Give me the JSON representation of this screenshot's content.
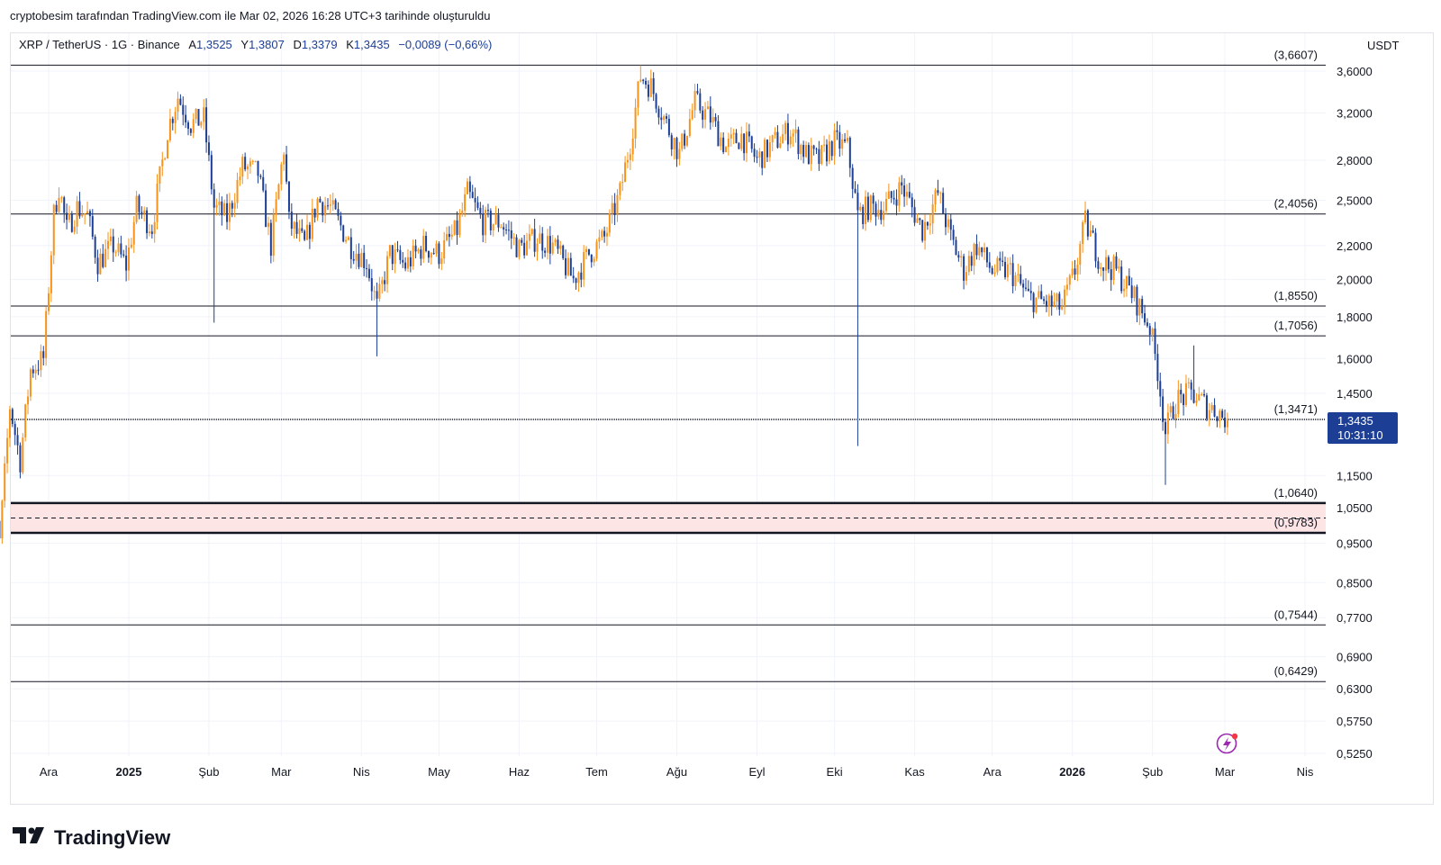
{
  "header": {
    "byline": "cryptobesim tarafından TradingView.com ile Mar 02, 2026 16:28 UTC+3 tarihinde oluşturuldu"
  },
  "legend": {
    "symbol": "XRP / TetherUS · 1G · Binance",
    "open_label": "A",
    "open": "1,3525",
    "high_label": "Y",
    "high": "1,3807",
    "low_label": "D",
    "low": "1,3379",
    "close_label": "K",
    "close": "1,3435",
    "change": "−0,0089 (−0,66%)"
  },
  "price_scale": {
    "currency": "USDT"
  },
  "price_tag": {
    "price": "1,3435",
    "countdown": "10:31:10"
  },
  "brand": {
    "name": "TradingView"
  },
  "colors": {
    "up": "#f7931a",
    "down": "#1c3f95",
    "tag_bg": "#1c3f95",
    "zone": "#fde5e5"
  },
  "chart_data": {
    "type": "candlestick",
    "y_scale": "log",
    "ylim": [
      0.52,
      3.75
    ],
    "y_ticks": [
      "3,6000",
      "3,2000",
      "2,8000",
      "2,5000",
      "2,2000",
      "2,0000",
      "1,8000",
      "1,6000",
      "1,4500",
      "1,1500",
      "1,0500",
      "0,9500",
      "0,8500",
      "0,7700",
      "0,6900",
      "0,6300",
      "0,5750",
      "0,5250"
    ],
    "y_tick_values": [
      3.6,
      3.2,
      2.8,
      2.5,
      2.2,
      2.0,
      1.8,
      1.6,
      1.45,
      1.15,
      1.05,
      0.95,
      0.85,
      0.77,
      0.69,
      0.63,
      0.575,
      0.525
    ],
    "x_ticks": [
      {
        "label": "Ara",
        "date": "2024-12-01",
        "bold": false
      },
      {
        "label": "2025",
        "date": "2025-01-01",
        "bold": true
      },
      {
        "label": "Şub",
        "date": "2025-02-01",
        "bold": false
      },
      {
        "label": "Mar",
        "date": "2025-03-01",
        "bold": false
      },
      {
        "label": "Nis",
        "date": "2025-04-01",
        "bold": false
      },
      {
        "label": "May",
        "date": "2025-05-01",
        "bold": false
      },
      {
        "label": "Haz",
        "date": "2025-06-01",
        "bold": false
      },
      {
        "label": "Tem",
        "date": "2025-07-01",
        "bold": false
      },
      {
        "label": "Ağu",
        "date": "2025-08-01",
        "bold": false
      },
      {
        "label": "Eyl",
        "date": "2025-09-01",
        "bold": false
      },
      {
        "label": "Eki",
        "date": "2025-10-01",
        "bold": false
      },
      {
        "label": "Kas",
        "date": "2025-11-01",
        "bold": false
      },
      {
        "label": "Ara",
        "date": "2025-12-01",
        "bold": false
      },
      {
        "label": "2026",
        "date": "2026-01-01",
        "bold": true
      },
      {
        "label": "Şub",
        "date": "2026-02-01",
        "bold": false
      },
      {
        "label": "Mar",
        "date": "2026-03-01",
        "bold": false
      },
      {
        "label": "Nis",
        "date": "2026-04-01",
        "bold": false
      }
    ],
    "levels": [
      {
        "label": "(3,6607)",
        "value": 3.6607
      },
      {
        "label": "(2,4056)",
        "value": 2.4056
      },
      {
        "label": "(1,8550)",
        "value": 1.855
      },
      {
        "label": "(1,7056)",
        "value": 1.7056
      },
      {
        "label": "(1,3471)",
        "value": 1.3471
      },
      {
        "label": "(1,0640)",
        "value": 1.064
      },
      {
        "label": "(0,9783)",
        "value": 0.9783
      },
      {
        "label": "(0,7544)",
        "value": 0.7544
      },
      {
        "label": "(0,6429)",
        "value": 0.6429
      }
    ],
    "support_zone": [
      0.98,
      1.064
    ],
    "support_mid": 1.02,
    "last_price": 1.3435,
    "anchors": [
      [
        "2024-11-06",
        0.52
      ],
      [
        "2024-11-08",
        1.15
      ],
      [
        "2024-11-12",
        0.95
      ],
      [
        "2024-11-16",
        1.4
      ],
      [
        "2024-11-20",
        1.2
      ],
      [
        "2024-11-24",
        1.55
      ],
      [
        "2024-11-29",
        1.6
      ],
      [
        "2024-12-03",
        2.4
      ],
      [
        "2024-12-05",
        2.6
      ],
      [
        "2024-12-08",
        2.3
      ],
      [
        "2024-12-12",
        2.45
      ],
      [
        "2024-12-16",
        2.4
      ],
      [
        "2024-12-20",
        2.1
      ],
      [
        "2024-12-26",
        2.2
      ],
      [
        "2024-12-31",
        2.08
      ],
      [
        "2025-01-04",
        2.45
      ],
      [
        "2025-01-10",
        2.32
      ],
      [
        "2025-01-16",
        3.05
      ],
      [
        "2025-01-20",
        3.35
      ],
      [
        "2025-01-25",
        3.1
      ],
      [
        "2025-01-30",
        3.15
      ],
      [
        "2025-02-03",
        2.45
      ],
      [
        "2025-02-08",
        2.38
      ],
      [
        "2025-02-14",
        2.75
      ],
      [
        "2025-02-20",
        2.7
      ],
      [
        "2025-02-25",
        2.2
      ],
      [
        "2025-03-02",
        2.9
      ],
      [
        "2025-03-04",
        2.35
      ],
      [
        "2025-03-10",
        2.2
      ],
      [
        "2025-03-15",
        2.5
      ],
      [
        "2025-03-20",
        2.45
      ],
      [
        "2025-03-28",
        2.2
      ],
      [
        "2025-04-03",
        2.1
      ],
      [
        "2025-04-07",
        1.85
      ],
      [
        "2025-04-12",
        2.15
      ],
      [
        "2025-04-18",
        2.08
      ],
      [
        "2025-04-25",
        2.2
      ],
      [
        "2025-05-01",
        2.15
      ],
      [
        "2025-05-08",
        2.3
      ],
      [
        "2025-05-12",
        2.55
      ],
      [
        "2025-05-18",
        2.35
      ],
      [
        "2025-05-25",
        2.35
      ],
      [
        "2025-06-01",
        2.18
      ],
      [
        "2025-06-08",
        2.25
      ],
      [
        "2025-06-14",
        2.2
      ],
      [
        "2025-06-22",
        2.0
      ],
      [
        "2025-06-28",
        2.15
      ],
      [
        "2025-07-04",
        2.25
      ],
      [
        "2025-07-10",
        2.55
      ],
      [
        "2025-07-14",
        2.95
      ],
      [
        "2025-07-18",
        3.55
      ],
      [
        "2025-07-22",
        3.45
      ],
      [
        "2025-07-28",
        3.1
      ],
      [
        "2025-08-02",
        2.85
      ],
      [
        "2025-08-08",
        3.3
      ],
      [
        "2025-08-14",
        3.15
      ],
      [
        "2025-08-20",
        2.9
      ],
      [
        "2025-08-26",
        3.0
      ],
      [
        "2025-09-01",
        2.8
      ],
      [
        "2025-09-08",
        2.95
      ],
      [
        "2025-09-14",
        3.05
      ],
      [
        "2025-09-20",
        2.85
      ],
      [
        "2025-09-25",
        2.8
      ],
      [
        "2025-10-01",
        2.95
      ],
      [
        "2025-10-06",
        2.9
      ],
      [
        "2025-10-10",
        2.4
      ],
      [
        "2025-10-14",
        2.45
      ],
      [
        "2025-10-20",
        2.45
      ],
      [
        "2025-10-27",
        2.6
      ],
      [
        "2025-11-04",
        2.3
      ],
      [
        "2025-11-10",
        2.55
      ],
      [
        "2025-11-15",
        2.25
      ],
      [
        "2025-11-20",
        2.05
      ],
      [
        "2025-11-25",
        2.2
      ],
      [
        "2025-12-01",
        2.05
      ],
      [
        "2025-12-08",
        2.05
      ],
      [
        "2025-12-15",
        1.9
      ],
      [
        "2025-12-22",
        1.87
      ],
      [
        "2025-12-28",
        1.85
      ],
      [
        "2026-01-02",
        2.05
      ],
      [
        "2026-01-06",
        2.35
      ],
      [
        "2026-01-12",
        2.1
      ],
      [
        "2026-01-18",
        2.05
      ],
      [
        "2026-01-25",
        1.9
      ],
      [
        "2026-01-31",
        1.75
      ],
      [
        "2026-02-03",
        1.55
      ],
      [
        "2026-02-06",
        1.3
      ],
      [
        "2026-02-10",
        1.42
      ],
      [
        "2026-02-16",
        1.45
      ],
      [
        "2026-02-22",
        1.4
      ],
      [
        "2026-02-26",
        1.38
      ],
      [
        "2026-03-02",
        1.3435
      ]
    ],
    "wicks": [
      [
        "2025-02-03",
        1.77
      ],
      [
        "2025-04-07",
        1.61
      ],
      [
        "2025-10-10",
        1.25
      ],
      [
        "2026-02-06",
        1.12
      ],
      [
        "2025-07-18",
        3.66
      ],
      [
        "2026-01-06",
        2.41
      ],
      [
        "2026-02-17",
        1.66
      ]
    ]
  }
}
